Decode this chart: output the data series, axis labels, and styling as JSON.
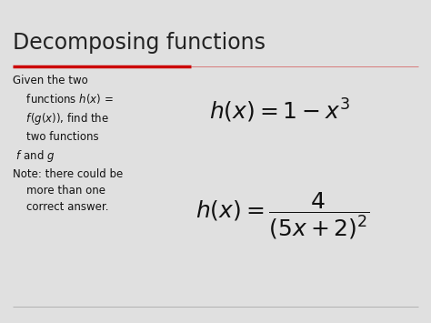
{
  "title": "Decomposing functions",
  "background_color": "#e0e0e0",
  "title_color": "#222222",
  "text_color": "#111111",
  "red_line_thick_color": "#cc0000",
  "red_line_thin_color": "#cc000066",
  "title_fontsize": 17,
  "body_fontsize": 8.5,
  "formula_fontsize": 18,
  "left_text": "Given the two\n    functions $h(x)$ =\n    $f(g(x))$, find the\n    two functions\n $f$ and $g$\nNote: there could be\n    more than one\n    correct answer.",
  "formula1": "$h(x)=1-x^3$",
  "formula2": "$h(x)=\\dfrac{4}{(5x+2)^2}$"
}
